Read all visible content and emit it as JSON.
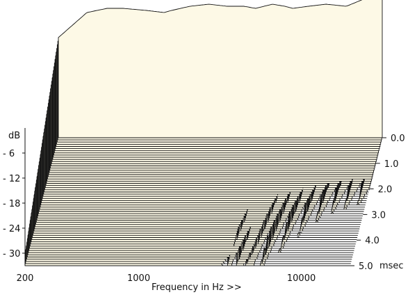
{
  "chart_data": {
    "type": "area",
    "subtype": "cumulative-spectral-decay (waterfall)",
    "xlabel": "Frequency in Hz >>",
    "ylabel": "dB",
    "zlabel": "msec",
    "x_scale": "log",
    "xlim": [
      200,
      20000
    ],
    "x_ticks": [
      200,
      1000,
      10000
    ],
    "x_tick_labels": [
      "200",
      "1000",
      "10000"
    ],
    "ylim": [
      -33,
      0
    ],
    "y_ticks": [
      -6,
      -12,
      -18,
      -24,
      -30
    ],
    "y_tick_labels": [
      "- 6",
      "- 12",
      "- 18",
      "- 24",
      "- 30"
    ],
    "z_ticks": [
      0.0,
      1.0,
      2.0,
      3.0,
      4.0,
      5.0
    ],
    "z_tick_labels": [
      "0.0",
      "1.0",
      "2.0",
      "3.0",
      "4.0",
      "5.0"
    ],
    "z_unit_label": "msec",
    "slice_count": 60,
    "fill_color": "#fdf9e6",
    "line_color": "#111111",
    "profile": {
      "description": "approximate response level (dB) at time 0 across frequency",
      "x": [
        200,
        300,
        400,
        500,
        700,
        900,
        1000,
        1300,
        1700,
        2200,
        2800,
        3300,
        4200,
        5000,
        5600,
        7000,
        9000,
        12000,
        16000,
        20000
      ],
      "y": [
        -9,
        -3,
        -2,
        -2,
        -2.5,
        -3,
        -2.5,
        -1.5,
        -1,
        -1.5,
        -1.5,
        -2,
        -1,
        -1.5,
        -2,
        -1.5,
        -1,
        -1.5,
        0.5,
        1
      ]
    }
  }
}
